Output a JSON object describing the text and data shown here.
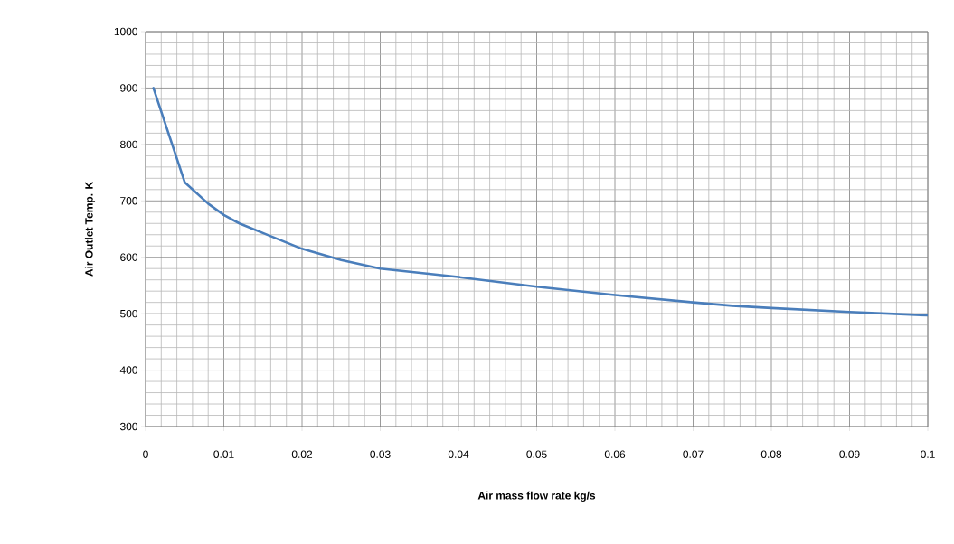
{
  "chart_data": {
    "type": "line",
    "xlabel": "Air mass flow rate kg/s",
    "ylabel": "Air Outlet  Temp. K",
    "x": [
      0.001,
      0.005,
      0.008,
      0.01,
      0.012,
      0.015,
      0.02,
      0.025,
      0.03,
      0.04,
      0.05,
      0.06,
      0.07,
      0.075,
      0.08,
      0.09,
      0.1
    ],
    "series": [
      {
        "color": "#4a7ebb",
        "values": [
          900,
          733,
          695,
          675,
          660,
          643,
          615,
          595,
          580,
          565,
          548,
          533,
          520,
          514,
          510,
          503,
          497
        ]
      }
    ],
    "xlim": [
      0,
      0.1
    ],
    "ylim": [
      300,
      1000
    ],
    "xticks": [
      0,
      0.01,
      0.02,
      0.03,
      0.04,
      0.05,
      0.06,
      0.07,
      0.08,
      0.09,
      0.1
    ],
    "yticks": [
      300,
      400,
      500,
      600,
      700,
      800,
      900,
      1000
    ],
    "grid": true,
    "marker": "none",
    "line_style": "solid"
  }
}
